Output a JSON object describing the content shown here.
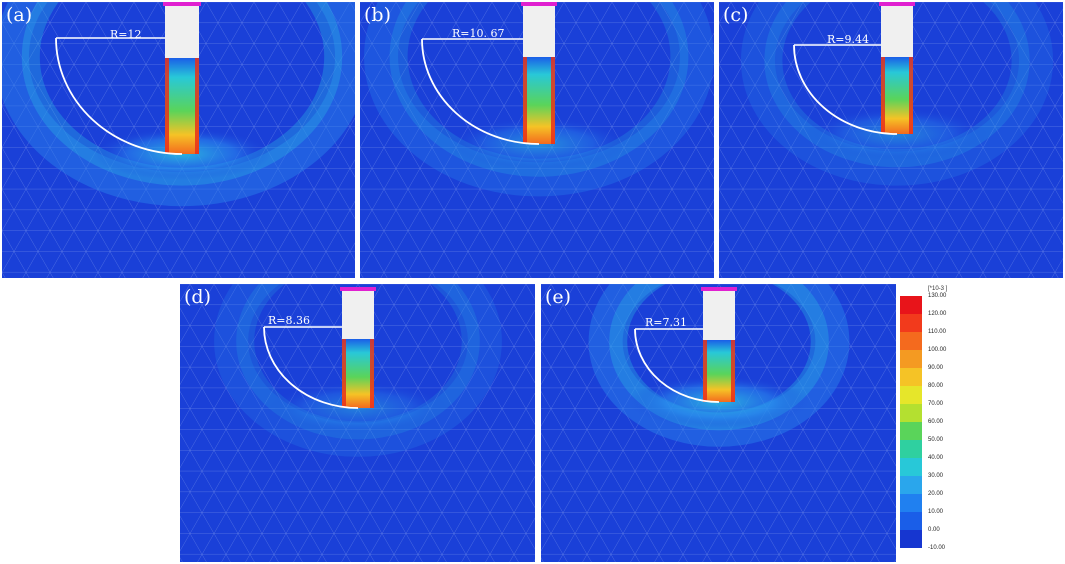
{
  "panels": [
    {
      "label": "(a)",
      "radius_label": "R=12"
    },
    {
      "label": "(b)",
      "radius_label": "R=10. 67"
    },
    {
      "label": "(c)",
      "radius_label": "R=9.44"
    },
    {
      "label": "(d)",
      "radius_label": "R=8.36"
    },
    {
      "label": "(e)",
      "radius_label": "R=7.31"
    }
  ],
  "legend": {
    "unit": "[*10-3 ]",
    "ticks": [
      "130.00",
      "120.00",
      "110.00",
      "100.00",
      "90.00",
      "80.00",
      "70.00",
      "60.00",
      "50.00",
      "40.00",
      "30.00",
      "20.00",
      "10.00",
      "0.00",
      "-10.00"
    ],
    "colors": [
      "#e8141a",
      "#f23a1c",
      "#f46a1e",
      "#f49a22",
      "#f5c326",
      "#e6e62a",
      "#b4e030",
      "#5ad45a",
      "#2fd0a0",
      "#28c8d8",
      "#2aa6ec",
      "#2080f0",
      "#1a5ee8",
      "#1636d0"
    ]
  },
  "colors": {
    "background_field": "#1a40d8",
    "pile_body": "#f0f0f0",
    "pile_cap": "#e020d0",
    "arc_line": "#ffffff"
  }
}
